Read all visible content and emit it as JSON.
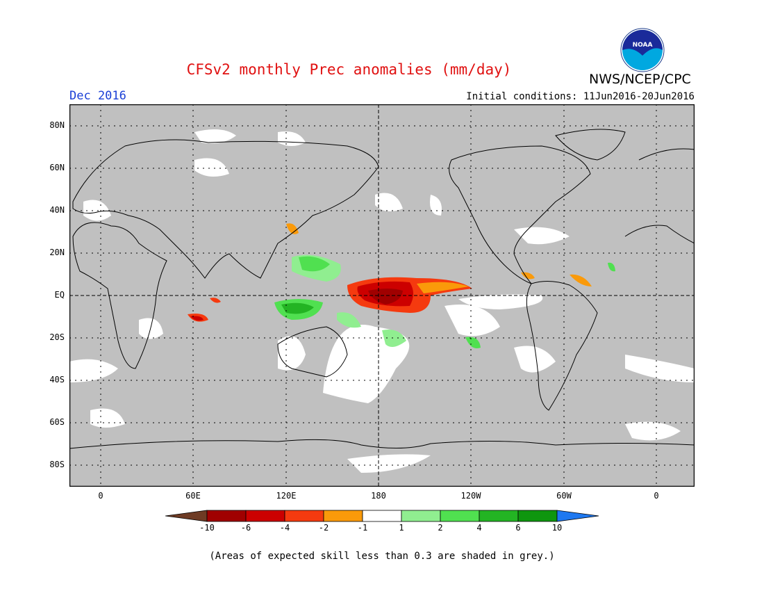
{
  "header": {
    "title": "CFSv2 monthly Prec anomalies (mm/day)",
    "month": "Dec 2016",
    "initial_conditions": "Initial conditions: 11Jun2016-20Jun2016",
    "agency": "NWS/NCEP/CPC",
    "logo_text": "NOAA"
  },
  "map": {
    "lat_labels": [
      "80N",
      "60N",
      "40N",
      "20N",
      "EQ",
      "20S",
      "40S",
      "60S",
      "80S"
    ],
    "lon_labels": [
      "0",
      "60E",
      "120E",
      "180",
      "120W",
      "60W",
      "0"
    ],
    "background_color": "#c0c0c0",
    "outline_color": "#000000"
  },
  "colorbar": {
    "labels": [
      "-10",
      "-6",
      "-4",
      "-2",
      "-1",
      "1",
      "2",
      "4",
      "6",
      "10"
    ],
    "colors": [
      "#6e3b24",
      "#a00000",
      "#cc0000",
      "#f53a0f",
      "#fa9a0a",
      "#ffffff",
      "#90ee90",
      "#50e050",
      "#23b423",
      "#0e960e",
      "#1e78f0"
    ]
  },
  "footnote": "(Areas of expected skill less than 0.3 are shaded in grey.)"
}
